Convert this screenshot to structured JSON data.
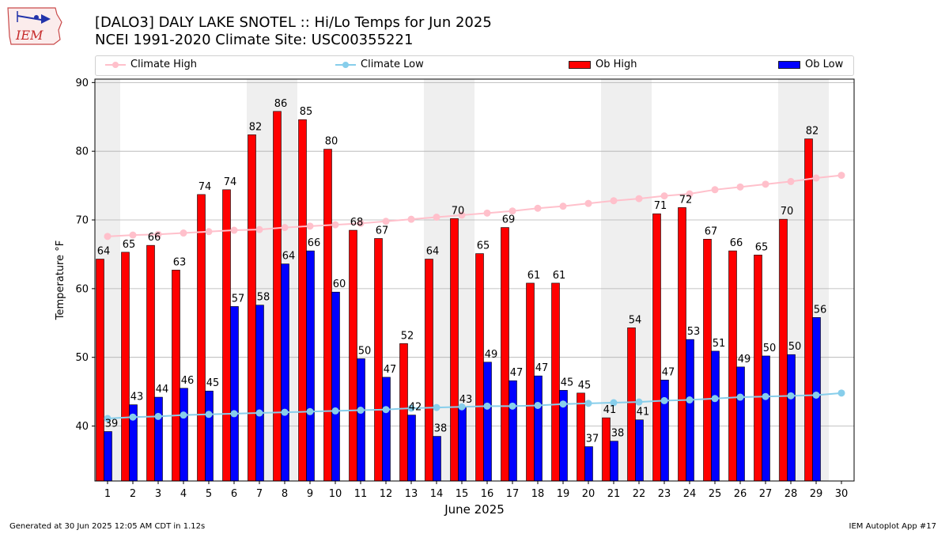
{
  "header": {
    "title_line1": "[DALO3] DALY LAKE SNOTEL :: Hi/Lo Temps for Jun 2025",
    "title_line2": "NCEI 1991-2020 Climate Site: USC00355221",
    "logo_text": "IEM"
  },
  "footer": {
    "generated": "Generated at 30 Jun 2025 12:05 AM CDT in 1.12s",
    "app": "IEM Autoplot App #17"
  },
  "legend": {
    "climate_high": "Climate High",
    "climate_low": "Climate Low",
    "ob_high": "Ob High",
    "ob_low": "Ob Low"
  },
  "colors": {
    "ob_high": "#ff0000",
    "ob_low": "#0000ff",
    "climate_high": "#ffc0cb",
    "climate_low": "#87ceeb",
    "weekend_shade": "#efefef",
    "grid": "#b0b0b0"
  },
  "chart_data": {
    "type": "bar",
    "xlabel": "June 2025",
    "ylabel": "Temperature °F",
    "ylim": [
      32,
      90.5
    ],
    "yticks": [
      40,
      50,
      60,
      70,
      80,
      90
    ],
    "grid": "horizontal",
    "legend_placement": "top",
    "x": [
      1,
      2,
      3,
      4,
      5,
      6,
      7,
      8,
      9,
      10,
      11,
      12,
      13,
      14,
      15,
      16,
      17,
      18,
      19,
      20,
      21,
      22,
      23,
      24,
      25,
      26,
      27,
      28,
      29,
      30
    ],
    "weekend_days": [
      1,
      7,
      8,
      14,
      15,
      21,
      22,
      28,
      29
    ],
    "series": [
      {
        "name": "Ob High",
        "kind": "bar",
        "values": [
          64.3,
          65.3,
          66.3,
          62.7,
          73.7,
          74.4,
          82.4,
          85.8,
          84.6,
          80.3,
          68.5,
          67.3,
          52.0,
          64.3,
          70.2,
          65.1,
          68.9,
          60.8,
          60.8,
          44.8,
          41.2,
          54.3,
          70.9,
          71.8,
          67.2,
          65.5,
          64.9,
          70.1,
          81.8,
          null
        ],
        "labels": [
          "64",
          "65",
          "66",
          "63",
          "74",
          "74",
          "82",
          "86",
          "85",
          "80",
          "68",
          "67",
          "52",
          "64",
          "70",
          "65",
          "69",
          "61",
          "61",
          "45",
          "41",
          "54",
          "71",
          "72",
          "67",
          "66",
          "65",
          "70",
          "82",
          ""
        ]
      },
      {
        "name": "Ob Low",
        "kind": "bar",
        "values": [
          39.2,
          43.1,
          44.2,
          45.5,
          45.1,
          57.4,
          57.6,
          63.6,
          65.5,
          59.5,
          49.8,
          47.1,
          41.6,
          38.5,
          42.7,
          49.3,
          46.6,
          47.3,
          45.2,
          37.0,
          37.8,
          40.9,
          46.7,
          52.6,
          50.9,
          48.6,
          50.2,
          50.4,
          55.8,
          null
        ],
        "labels": [
          "39",
          "43",
          "44",
          "46",
          "45",
          "57",
          "58",
          "64",
          "66",
          "60",
          "50",
          "47",
          "42",
          "38",
          "43",
          "49",
          "47",
          "47",
          "45",
          "37",
          "38",
          "41",
          "47",
          "53",
          "51",
          "49",
          "50",
          "50",
          "56",
          ""
        ]
      },
      {
        "name": "Climate High",
        "kind": "line",
        "values": [
          67.6,
          67.8,
          67.9,
          68.1,
          68.3,
          68.5,
          68.6,
          68.9,
          69.1,
          69.3,
          69.5,
          69.8,
          70.1,
          70.4,
          70.7,
          71.0,
          71.3,
          71.7,
          72.0,
          72.4,
          72.8,
          73.1,
          73.5,
          73.8,
          74.4,
          74.8,
          75.2,
          75.6,
          76.1,
          76.5
        ]
      },
      {
        "name": "Climate Low",
        "kind": "line",
        "values": [
          41.1,
          41.3,
          41.4,
          41.6,
          41.7,
          41.8,
          41.9,
          42.0,
          42.1,
          42.2,
          42.3,
          42.4,
          42.6,
          42.7,
          42.8,
          42.9,
          42.9,
          43.0,
          43.2,
          43.3,
          43.4,
          43.5,
          43.7,
          43.8,
          44.0,
          44.2,
          44.3,
          44.4,
          44.5,
          44.8
        ]
      }
    ]
  }
}
